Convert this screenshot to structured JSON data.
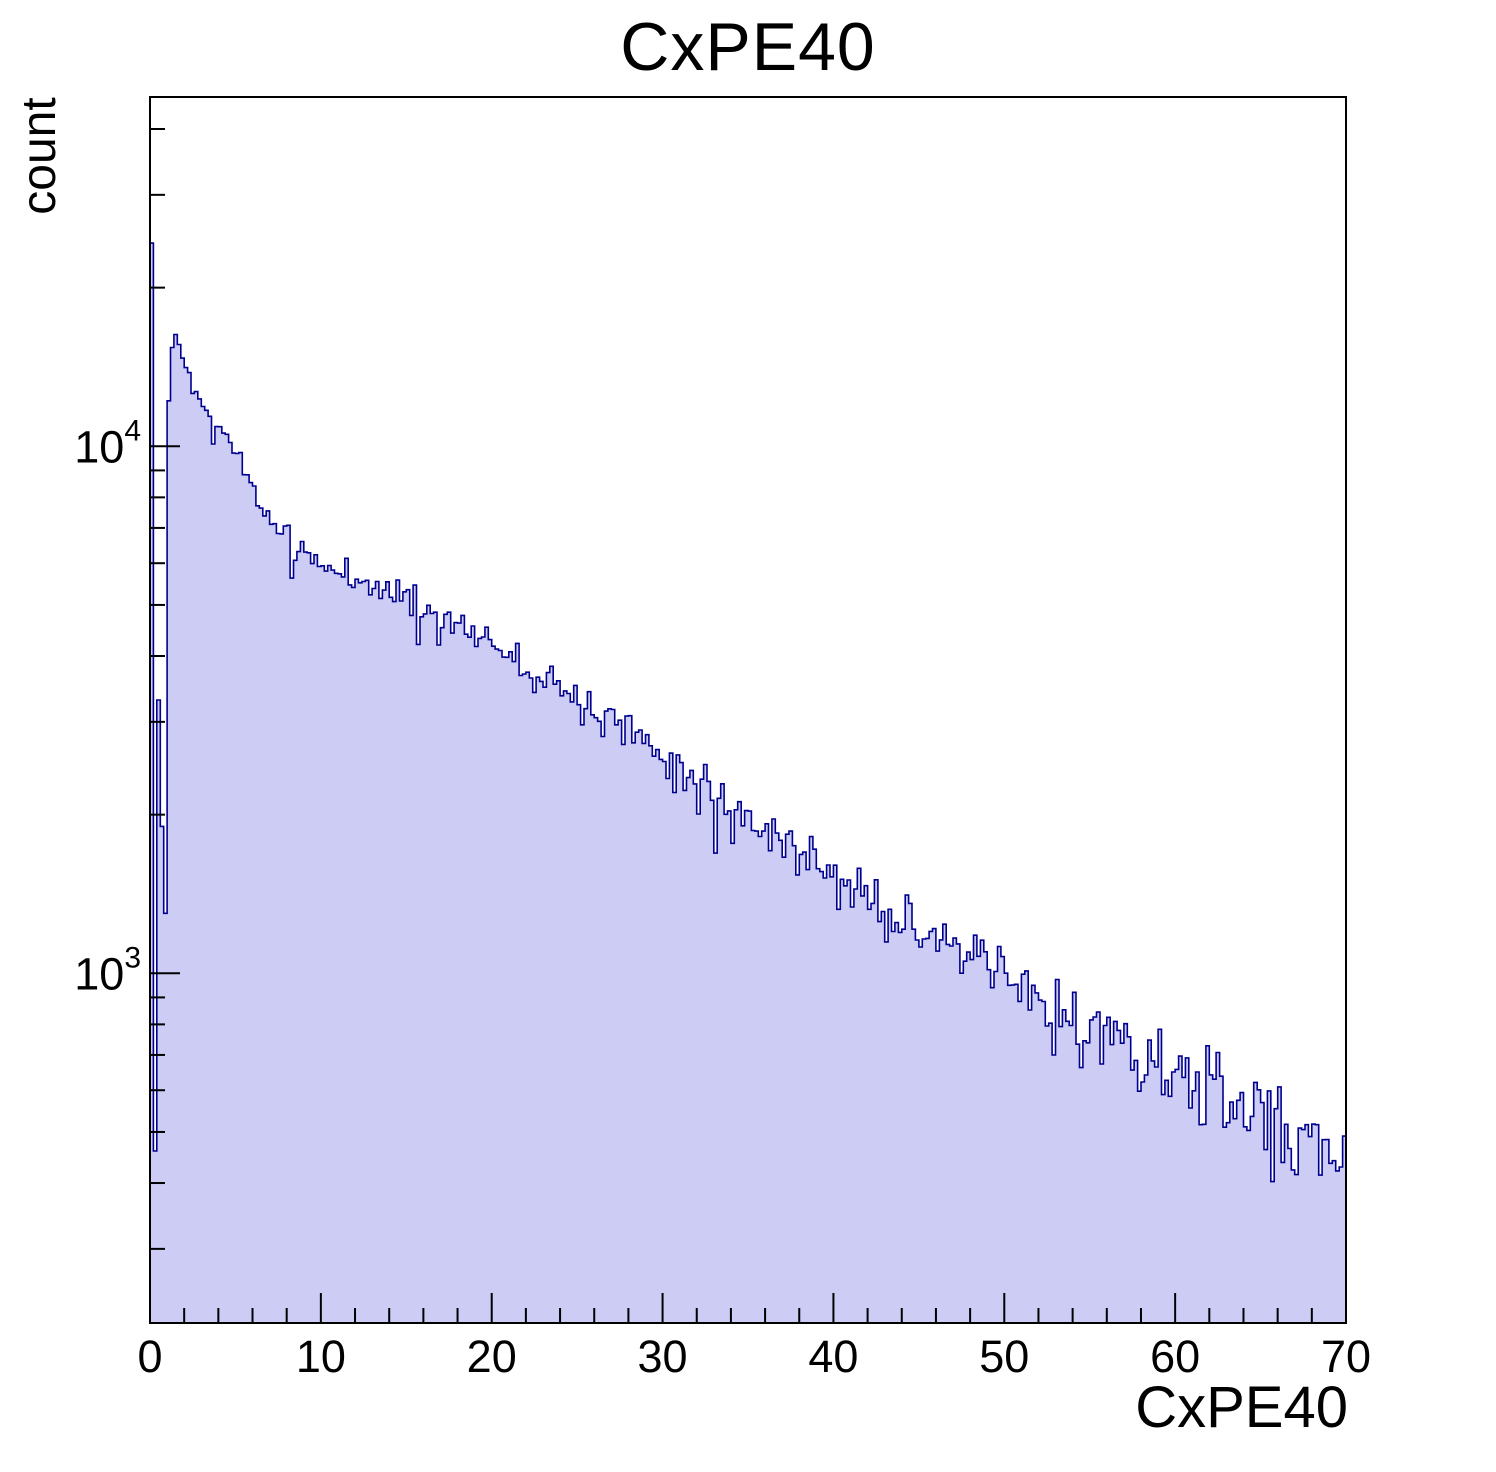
{
  "page_title": "CxPE40",
  "chart_data": {
    "type": "bar",
    "style": "filled-step-histogram (ROOT style)",
    "title": "CxPE40",
    "xlabel": "CxPE40",
    "ylabel": "count",
    "legend": "none",
    "grid": "off",
    "x_range": [
      0,
      70
    ],
    "y_scale": "log",
    "y_range": [
      217,
      46000
    ],
    "x_ticks_major": [
      0,
      10,
      20,
      30,
      40,
      50,
      60,
      70
    ],
    "x_minor_step": 2,
    "y_ticks_major": [
      {
        "value": 1000,
        "base": "10",
        "exp": "3"
      },
      {
        "value": 10000,
        "base": "10",
        "exp": "4"
      }
    ],
    "bin_width": 0.2,
    "n_bins": 350,
    "head_bins": [
      24300,
      460,
      3300,
      1900,
      1300,
      12200,
      15400,
      16300,
      15600,
      14700,
      14100,
      13800,
      12600,
      12700,
      12300,
      11900,
      11700,
      11400,
      10100,
      10900
    ],
    "envelope": [
      [
        4.1,
        10800
      ],
      [
        5,
        9900
      ],
      [
        5.5,
        9100
      ],
      [
        6,
        8300
      ],
      [
        6.5,
        7700
      ],
      [
        7,
        7300
      ],
      [
        7.5,
        7000
      ],
      [
        8,
        6750
      ],
      [
        8.5,
        6400
      ],
      [
        9,
        6250
      ],
      [
        9.5,
        6100
      ],
      [
        10,
        5950
      ],
      [
        11,
        5750
      ],
      [
        12,
        5650
      ],
      [
        13,
        5450
      ],
      [
        14,
        5300
      ],
      [
        15,
        5150
      ],
      [
        16,
        4950
      ],
      [
        17,
        4750
      ],
      [
        18,
        4550
      ],
      [
        19,
        4400
      ],
      [
        20,
        4250
      ],
      [
        21,
        4100
      ],
      [
        22,
        3820
      ],
      [
        23,
        3650
      ],
      [
        24,
        3500
      ],
      [
        25,
        3320
      ],
      [
        26,
        3200
      ],
      [
        27,
        3080
      ],
      [
        28,
        2940
      ],
      [
        29,
        2760
      ],
      [
        30,
        2600
      ],
      [
        31,
        2470
      ],
      [
        32,
        2350
      ],
      [
        33,
        2180
      ],
      [
        34,
        2060
      ],
      [
        35,
        1980
      ],
      [
        36,
        1890
      ],
      [
        37,
        1780
      ],
      [
        38,
        1680
      ],
      [
        39,
        1590
      ],
      [
        40,
        1510
      ],
      [
        41,
        1450
      ],
      [
        42,
        1390
      ],
      [
        43,
        1330
      ],
      [
        44,
        1280
      ],
      [
        45,
        1220
      ],
      [
        46,
        1160
      ],
      [
        47,
        1100
      ],
      [
        48,
        1060
      ],
      [
        49,
        1020
      ],
      [
        50,
        975
      ],
      [
        51,
        935
      ],
      [
        52,
        900
      ],
      [
        53,
        860
      ],
      [
        54,
        825
      ],
      [
        55,
        790
      ],
      [
        56,
        755
      ],
      [
        57,
        720
      ],
      [
        58,
        695
      ],
      [
        59,
        670
      ],
      [
        60,
        645
      ],
      [
        61,
        620
      ],
      [
        62,
        595
      ],
      [
        63,
        570
      ],
      [
        64,
        550
      ],
      [
        65,
        530
      ],
      [
        66,
        510
      ],
      [
        67,
        490
      ],
      [
        68,
        472
      ],
      [
        69,
        456
      ],
      [
        70,
        442
      ]
    ],
    "outliers": [
      [
        8.1,
        1.06
      ],
      [
        8.3,
        0.86
      ],
      [
        15.5,
        1.08
      ],
      [
        15.7,
        0.84
      ],
      [
        16.9,
        0.88
      ],
      [
        23.5,
        1.07
      ],
      [
        32.1,
        0.86
      ],
      [
        32.5,
        1.1
      ],
      [
        33.1,
        0.78
      ],
      [
        33.5,
        1.08
      ],
      [
        34.1,
        0.86
      ],
      [
        36.5,
        1.07
      ],
      [
        52.9,
        0.81
      ],
      [
        55.3,
        1.06
      ],
      [
        64.9,
        1.13
      ],
      [
        65.7,
        0.78
      ],
      [
        67.1,
        0.85
      ],
      [
        68.1,
        1.1
      ]
    ],
    "noise": {
      "seed": 11,
      "k": 2.2
    },
    "colors": {
      "fill": "#ccccf4",
      "line": "#000090",
      "axis": "#000000",
      "background": "#ffffff"
    }
  }
}
